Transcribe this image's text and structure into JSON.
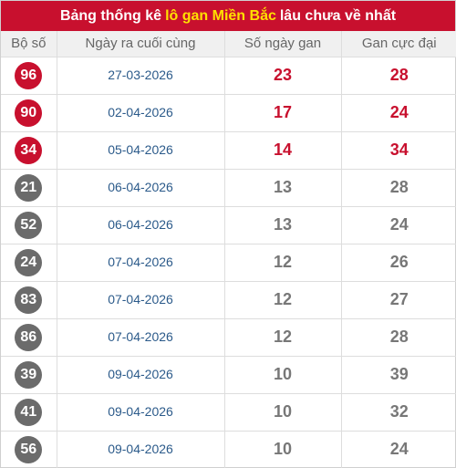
{
  "title": {
    "prefix": "Bảng thống kê",
    "highlight": "lô gan Miền Bắc",
    "suffix": "lâu chưa về nhất"
  },
  "headers": [
    "Bộ số",
    "Ngày ra cuối cùng",
    "Số ngày gan",
    "Gan cực đại"
  ],
  "colors": {
    "title_bg": "#c8102e",
    "highlight_text": "#ffe000",
    "hot_red": "#c8102e",
    "normal_gray": "#6b6b6b",
    "date_blue": "#2b5a8a"
  },
  "rows": [
    {
      "number": "96",
      "last_date": "27-03-2026",
      "days_gan": "23",
      "max_gan": "28",
      "hot": true
    },
    {
      "number": "90",
      "last_date": "02-04-2026",
      "days_gan": "17",
      "max_gan": "24",
      "hot": true
    },
    {
      "number": "34",
      "last_date": "05-04-2026",
      "days_gan": "14",
      "max_gan": "34",
      "hot": true
    },
    {
      "number": "21",
      "last_date": "06-04-2026",
      "days_gan": "13",
      "max_gan": "28",
      "hot": false
    },
    {
      "number": "52",
      "last_date": "06-04-2026",
      "days_gan": "13",
      "max_gan": "24",
      "hot": false
    },
    {
      "number": "24",
      "last_date": "07-04-2026",
      "days_gan": "12",
      "max_gan": "26",
      "hot": false
    },
    {
      "number": "83",
      "last_date": "07-04-2026",
      "days_gan": "12",
      "max_gan": "27",
      "hot": false
    },
    {
      "number": "86",
      "last_date": "07-04-2026",
      "days_gan": "12",
      "max_gan": "28",
      "hot": false
    },
    {
      "number": "39",
      "last_date": "09-04-2026",
      "days_gan": "10",
      "max_gan": "39",
      "hot": false
    },
    {
      "number": "41",
      "last_date": "09-04-2026",
      "days_gan": "10",
      "max_gan": "32",
      "hot": false
    },
    {
      "number": "56",
      "last_date": "09-04-2026",
      "days_gan": "10",
      "max_gan": "24",
      "hot": false
    }
  ]
}
